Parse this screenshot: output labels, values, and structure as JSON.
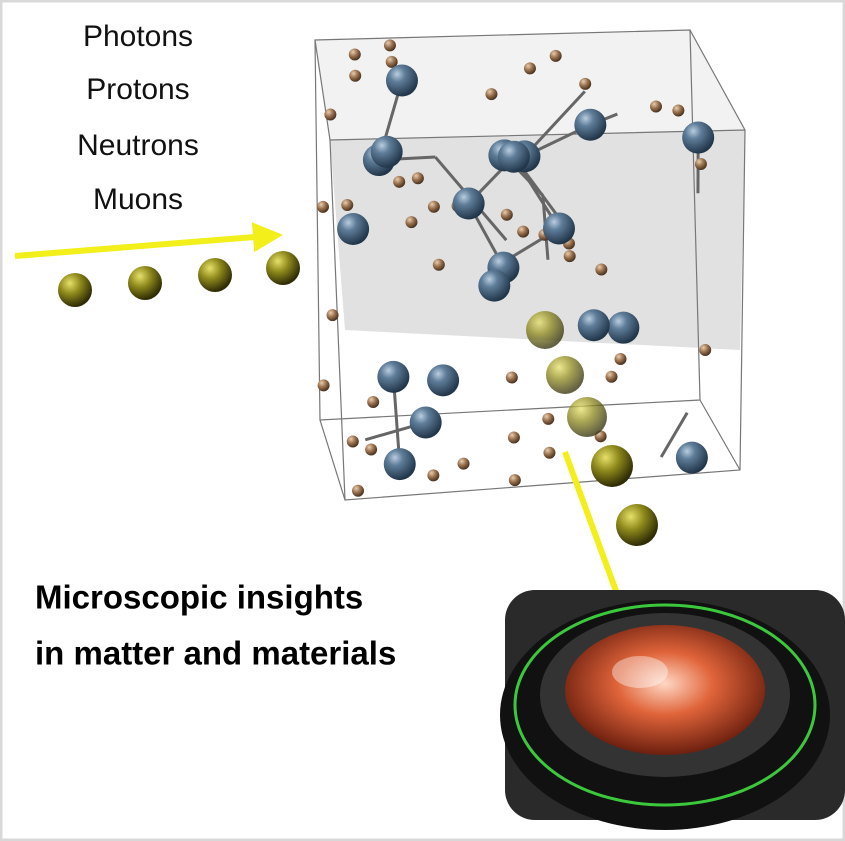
{
  "particles": [
    "Photons",
    "Protons",
    "Neutrons",
    "Muons"
  ],
  "caption": [
    "Microscopic insights",
    "in matter and materials"
  ]
}
